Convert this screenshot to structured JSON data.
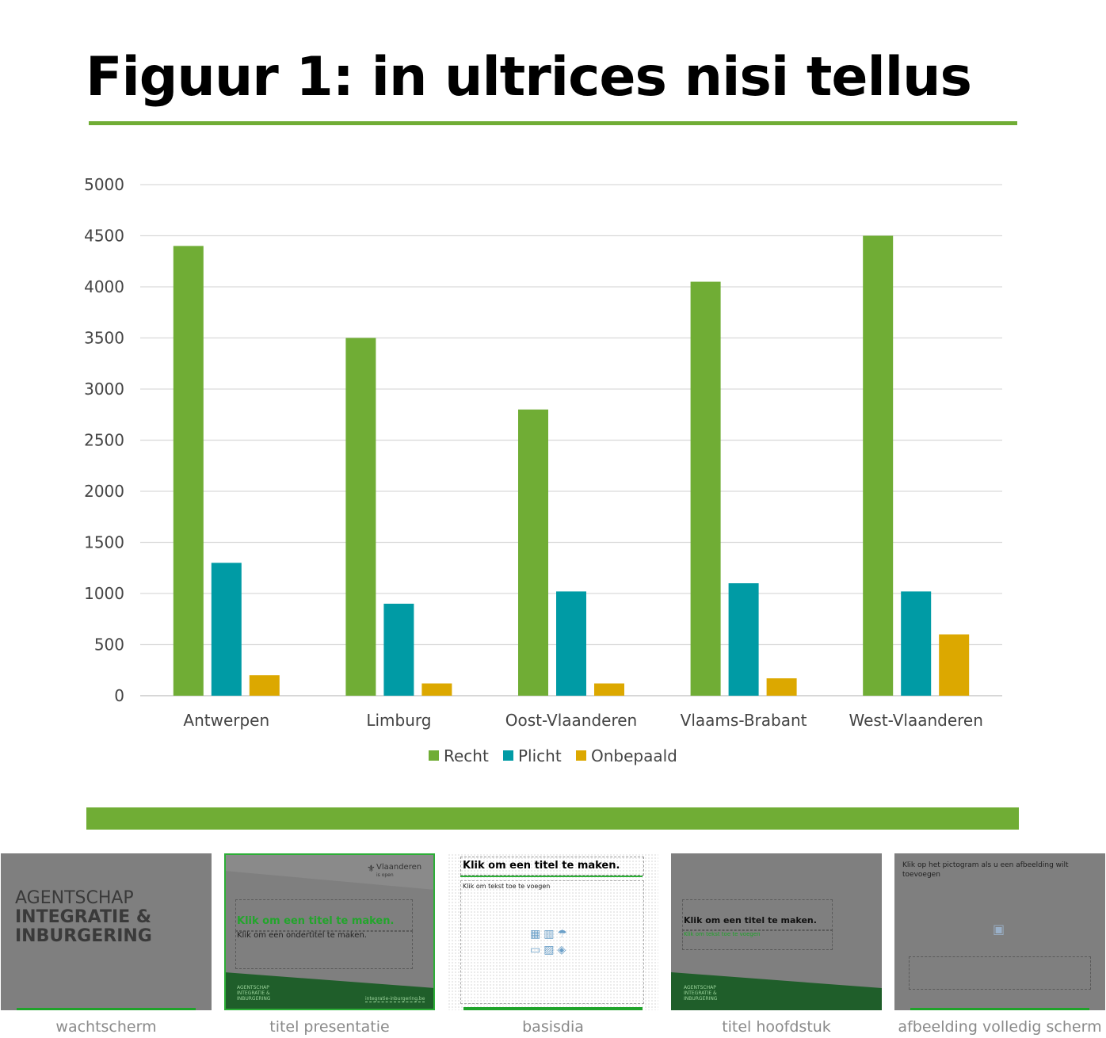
{
  "slide": {
    "title": "Figuur 1: in ultrices nisi tellus"
  },
  "colors": {
    "accent": "#70ad35",
    "recht": "#70ad35",
    "plicht": "#009ba5",
    "onbepaald": "#dca800"
  },
  "chart_data": {
    "type": "bar",
    "categories": [
      "Antwerpen",
      "Limburg",
      "Oost-Vlaanderen",
      "Vlaams-Brabant",
      "West-Vlaanderen"
    ],
    "series": [
      {
        "name": "Recht",
        "values": [
          4400,
          3500,
          2800,
          4050,
          4500
        ]
      },
      {
        "name": "Plicht",
        "values": [
          1300,
          900,
          1020,
          1100,
          1020
        ]
      },
      {
        "name": "Onbepaald",
        "values": [
          200,
          120,
          120,
          170,
          600
        ]
      }
    ],
    "y_ticks": [
      "0",
      "500",
      "1000",
      "1500",
      "2000",
      "2500",
      "3000",
      "3500",
      "4000",
      "4500",
      "5000"
    ],
    "ylim": [
      0,
      5000
    ],
    "grid": true,
    "legend_position": "bottom"
  },
  "layouts": [
    {
      "label": "wachtscherm",
      "logo_line1": "AGENTSCHAP",
      "logo_line2": "INTEGRATIE &",
      "logo_line3": "INBURGERING",
      "icon": "agency-logo"
    },
    {
      "label": "titel presentatie",
      "brand": "Vlaanderen",
      "brand_sub": "is open",
      "title_placeholder": "Klik om een titel te maken.",
      "subtitle_placeholder": "Klik om een ondertitel te maken.",
      "footer_logo_line1": "AGENTSCHAP",
      "footer_logo_line2": "INTEGRATIE &",
      "footer_logo_line3": "INBURGERING",
      "footer_url": "integratie-inburgering.be"
    },
    {
      "label": "basisdia",
      "title_placeholder": "Klik om een titel te maken.",
      "text_placeholder": "Klik om tekst toe te voegen"
    },
    {
      "label": "titel hoofdstuk",
      "title_placeholder": "Klik om een titel te maken.",
      "text_placeholder": "Klik om tekst toe te voegen",
      "footer_logo_line1": "AGENTSCHAP",
      "footer_logo_line2": "INTEGRATIE &",
      "footer_logo_line3": "INBURGERING"
    },
    {
      "label": "afbeelding volledig scherm",
      "picture_placeholder": "Klik op het pictogram als u een afbeelding wilt toevoegen"
    }
  ]
}
